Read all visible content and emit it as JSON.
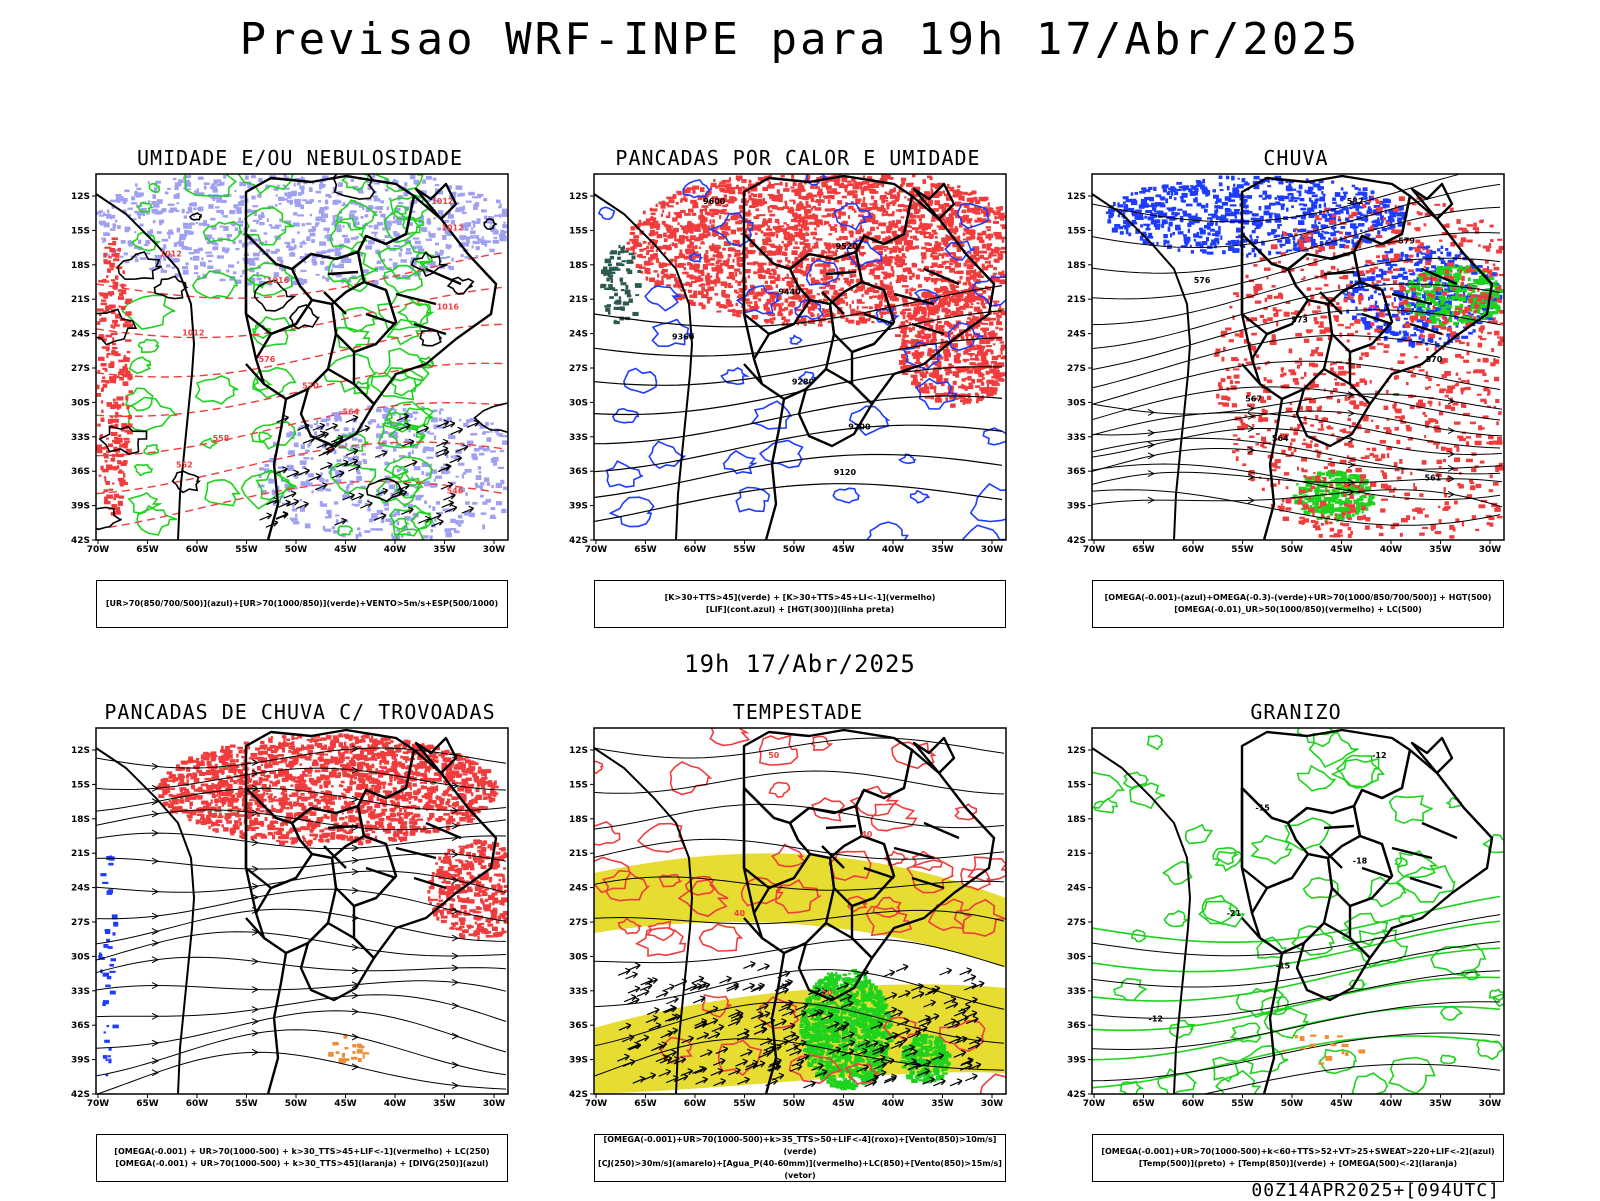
{
  "title": "Previsao WRF-INPE  para 19h 17/Abr/2025",
  "mid_title": "19h 17/Abr/2025",
  "footer": "00Z14APR2025+[094UTC]",
  "axis": {
    "lat": [
      "12S",
      "15S",
      "18S",
      "21S",
      "24S",
      "27S",
      "30S",
      "33S",
      "36S",
      "39S",
      "42S"
    ],
    "lon": [
      "70W",
      "65W",
      "60W",
      "55W",
      "50W",
      "45W",
      "40W",
      "35W",
      "30W"
    ]
  },
  "panels": [
    {
      "title": "UMIDADE E/OU NEBULOSIDADE",
      "legend": [
        "[UR>70(850/700/500)](azul)+[UR>70(1000/850)](verde)+VENTO>5m/s+ESP(500/1000)"
      ],
      "labels": [
        "1012",
        "1012",
        "1012",
        "1016",
        "1016",
        "1012",
        "576",
        "570",
        "564",
        "558",
        "552",
        "546"
      ]
    },
    {
      "title": "PANCADAS POR CALOR E UMIDADE",
      "legend": [
        "[K>30+TTS>45](verde) + [K>30+TTS>45+LI<-1](vermelho)",
        "[LIF](cont.azul) + [HGT(300)](linha preta)"
      ],
      "labels": [
        "9600",
        "9520",
        "9440",
        "9360",
        "9280",
        "9200",
        "9120"
      ]
    },
    {
      "title": "CHUVA",
      "legend": [
        "[OMEGA(-0.001)-(azul)+OMEGA(-0.3)-(verde)+UR>70(1000/850/700/500)] + HGT(500)",
        "[OMEGA(-0.01)_UR>50(1000/850)(vermelho) + LC(500)"
      ],
      "labels": [
        "582",
        "579",
        "576",
        "573",
        "570",
        "567",
        "564",
        "561"
      ]
    },
    {
      "title": "PANCADAS DE CHUVA C/ TROVOADAS",
      "legend": [
        "[OMEGA(-0.001) + UR>70(1000-500) + k>30_TTS>45+LIF<-1](vermelho) + LC(250)",
        "[OMEGA(-0.001) + UR>70(1000-500) + k>30_TTS>45](laranja) + [DIVG(250)](azul)"
      ],
      "labels": []
    },
    {
      "title": "TEMPESTADE",
      "legend": [
        "[OMEGA(-0.001)+UR>70(1000-500)+k>35_TTS>50+LIF<-4](roxo)+[Vento(850)>10m/s](verde)",
        "[CJ(250)>30m/s](amarelo)+[Agua_P(40-60mm)](vermelho)+LC(850)+[Vento(850)>15m/s](vetor)"
      ],
      "labels": [
        "50",
        "40",
        "40",
        "50"
      ]
    },
    {
      "title": "GRANIZO",
      "legend": [
        "[OMEGA(-0.001)+UR>70(1000-500)+k<60+TTS>52+VT>25+SWEAT>220+LIF<-2](azul)",
        "[Temp(500)](preto) + [Temp(850)](verde) + [OMEGA(500)<-2](laranja)"
      ],
      "labels": [
        "-12",
        "-15",
        "-18",
        "-21",
        "-15",
        "-12"
      ]
    }
  ],
  "colors": {
    "red": "#f03c3c",
    "green": "#1ed21e",
    "blue": "#1e3cff",
    "lavender": "#a0a0f0",
    "yellow": "#e6dc32",
    "dark": "#2d5a50"
  }
}
